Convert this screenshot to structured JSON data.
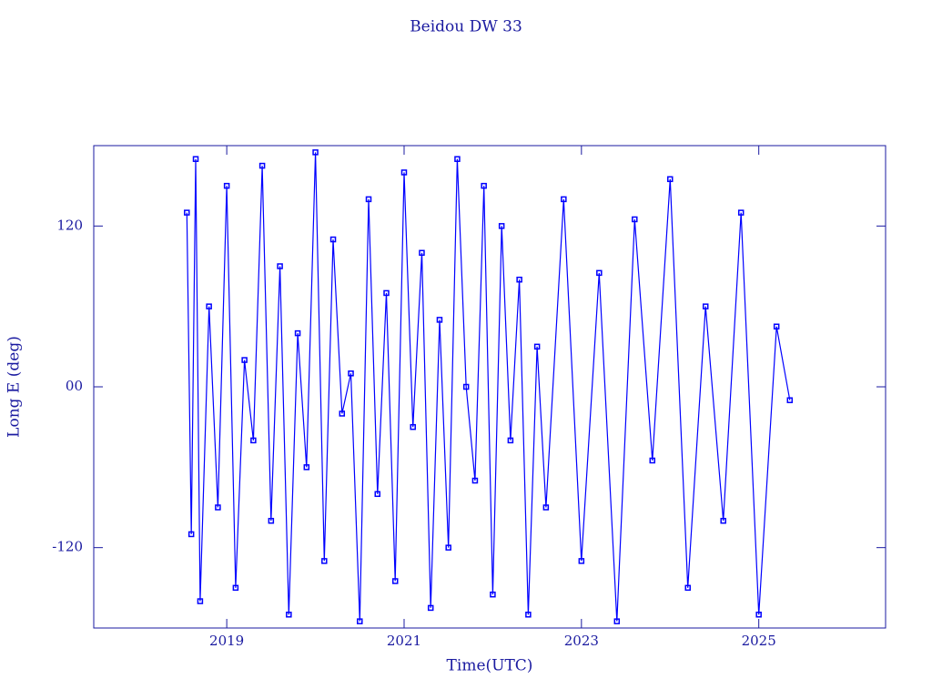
{
  "chart_data": {
    "type": "line",
    "title": "Beidou DW 33",
    "x_label": "Time(UTC)",
    "y_label": "Long E (deg)",
    "xlim": [
      2017.5,
      2026.43
    ],
    "xticks": [
      2019,
      2021,
      2023,
      2025
    ],
    "ylim": [
      -180,
      180
    ],
    "yticks": [
      -120,
      {
        "value": 0,
        "label": "00"
      },
      120
    ],
    "axis_color": "#1a1aa0",
    "series": [
      {
        "name": "Long E",
        "color": "#0000ff",
        "x": [
          2018.55,
          2018.6,
          2018.65,
          2018.7,
          2018.8,
          2018.9,
          2019.0,
          2019.1,
          2019.2,
          2019.3,
          2019.4,
          2019.5,
          2019.6,
          2019.7,
          2019.8,
          2019.9,
          2020.0,
          2020.1,
          2020.2,
          2020.3,
          2020.4,
          2020.5,
          2020.6,
          2020.7,
          2020.8,
          2020.9,
          2021.0,
          2021.1,
          2021.2,
          2021.3,
          2021.4,
          2021.5,
          2021.6,
          2021.7,
          2021.8,
          2021.9,
          2022.0,
          2022.1,
          2022.2,
          2022.3,
          2022.4,
          2022.5,
          2022.6,
          2022.8,
          2023.0,
          2023.2,
          2023.4,
          2023.6,
          2023.8,
          2024.0,
          2024.2,
          2024.4,
          2024.6,
          2024.8,
          2025.0,
          2025.2,
          2025.35
        ],
        "values": [
          130,
          -110,
          170,
          -160,
          60,
          -90,
          150,
          -150,
          20,
          -40,
          165,
          -100,
          90,
          -170,
          40,
          -60,
          175,
          -130,
          110,
          -20,
          10,
          -175,
          140,
          -80,
          70,
          -145,
          160,
          -30,
          100,
          -165,
          50,
          -120,
          170,
          0,
          -70,
          150,
          -155,
          120,
          -40,
          80,
          -170,
          30,
          -90,
          140,
          -130,
          85,
          -175,
          125,
          -55,
          155,
          -150,
          60,
          -100,
          130,
          -170,
          45,
          -10
        ]
      }
    ]
  }
}
